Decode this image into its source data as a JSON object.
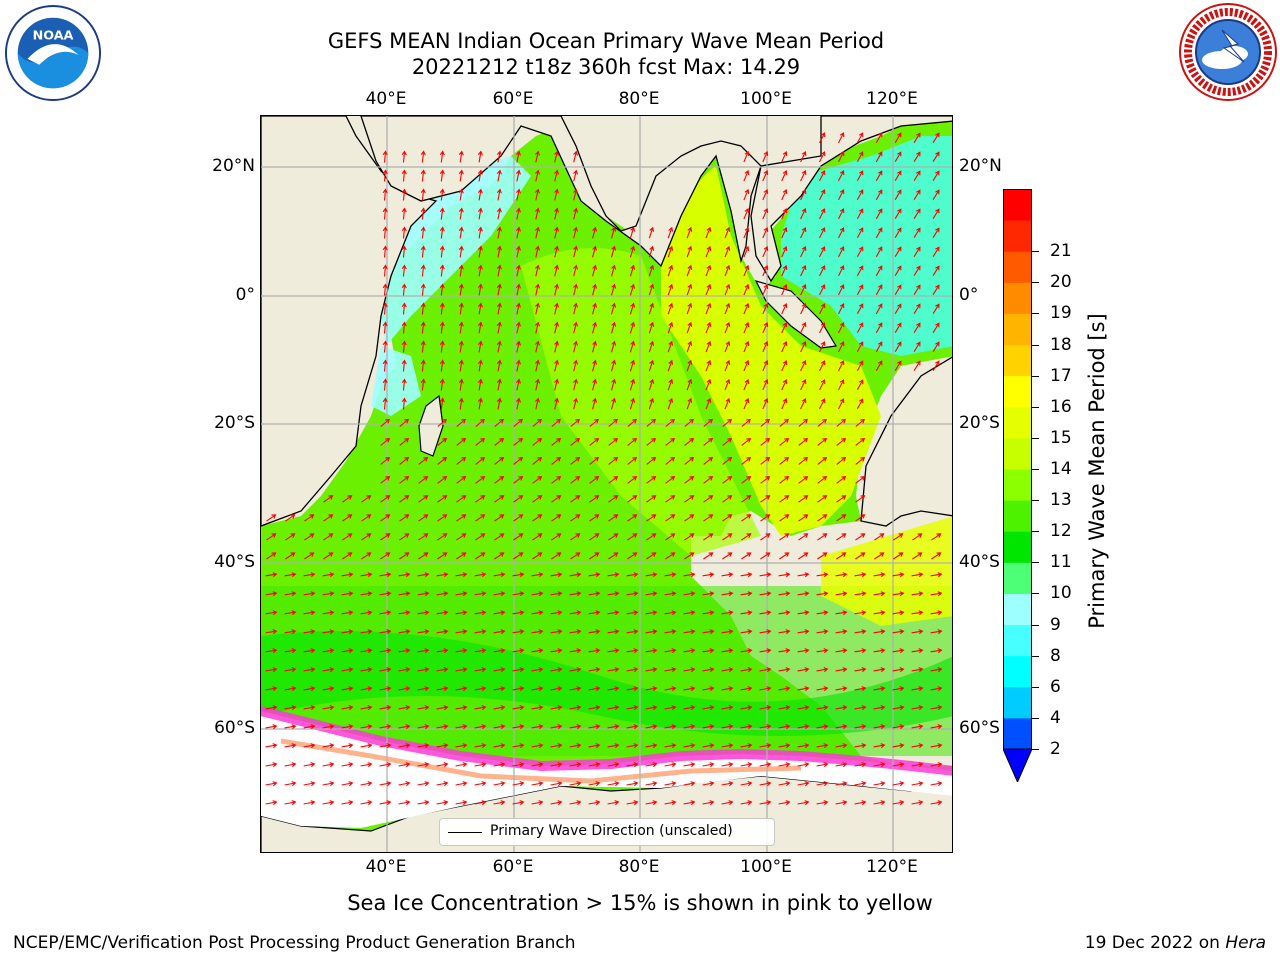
{
  "header": {
    "title_line1": "GEFS MEAN Indian Ocean Primary Wave Mean Period",
    "title_line2": "20221212 t18z 360h fcst   Max: 14.29"
  },
  "logos": {
    "noaa": {
      "icon": "noaa-logo",
      "text": "NOAA",
      "ring_text": "NATIONAL OCEANIC AND ATMOSPHERIC ADMINISTRATION · U.S. DEPARTMENT OF COMMERCE"
    },
    "nws": {
      "icon": "nws-logo",
      "ring_text": "NATIONAL WEATHER SERVICE"
    }
  },
  "map": {
    "lon_ticks": [
      "40°E",
      "60°E",
      "80°E",
      "100°E",
      "120°E"
    ],
    "lat_ticks": [
      "20°N",
      "0°",
      "20°S",
      "40°S",
      "60°S"
    ],
    "legend_label": "Primary Wave Direction (unscaled)",
    "colors": {
      "land": "#efecdc",
      "arrows": "#ff0000",
      "coast": "#000000",
      "grid": "#b0b0b0",
      "sea_ice_fill": "#ffffff"
    }
  },
  "colorbar": {
    "label": "Primary Wave Mean Period [s]",
    "ticks": [
      "2",
      "4",
      "6",
      "8",
      "9",
      "10",
      "11",
      "12",
      "13",
      "14",
      "15",
      "16",
      "17",
      "18",
      "19",
      "20",
      "21"
    ],
    "colors": [
      "#0050ff",
      "#00ccff",
      "#00ffff",
      "#48ffff",
      "#9dffff",
      "#4dff74",
      "#00e600",
      "#4cf200",
      "#8cff00",
      "#c8ff00",
      "#e6ff00",
      "#ffff00",
      "#ffd200",
      "#ffb400",
      "#ff8c00",
      "#ff5a00",
      "#ff2800",
      "#ff0000"
    ],
    "extend_color": "#0000ff"
  },
  "caption": "Sea Ice Concentration > 15% is shown in pink to yellow",
  "footer": {
    "left": "NCEP/EMC/Verification Post Processing Product Generation Branch",
    "right_date": "19 Dec 2022 on ",
    "right_host": "Hera"
  }
}
